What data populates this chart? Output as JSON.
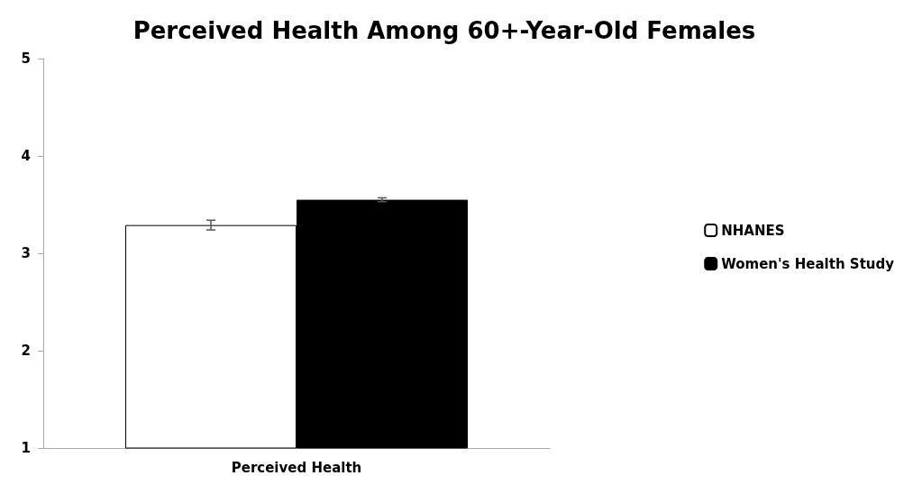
{
  "chart_data": {
    "type": "bar",
    "title": "Perceived Health Among 60+-Year-Old Females",
    "categories": [
      "Perceived Health"
    ],
    "series": [
      {
        "name": "NHANES",
        "color": "#ffffff",
        "values": [
          3.29
        ],
        "errors": [
          0.05
        ]
      },
      {
        "name": "Women's Health Study",
        "color": "#000000",
        "values": [
          3.55
        ],
        "errors": [
          0.02
        ]
      }
    ],
    "ylim": [
      1,
      5
    ],
    "yticks": [
      1,
      2,
      3,
      4,
      5
    ],
    "grid": false,
    "legend": "right"
  }
}
